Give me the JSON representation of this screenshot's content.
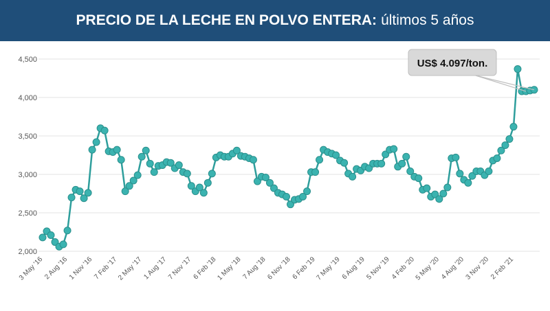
{
  "header": {
    "title_bold": "PRECIO DE LA LECHE EN POLVO ENTERA:",
    "title_rest": "últimos 5 años"
  },
  "colors": {
    "header_bg": "#1f4e79",
    "line": "#2e9e9c",
    "marker": "#3bb3b0",
    "grid": "#e3e3e3",
    "callout_bg": "#d9d9d9"
  },
  "callout": {
    "text": "US$ 4.097/ton."
  },
  "chart_data": {
    "type": "line",
    "title": "PRECIO DE LA LECHE EN POLVO ENTERA: últimos 5 años",
    "ylim": [
      2000,
      4500
    ],
    "yticks": [
      2000,
      2500,
      3000,
      3500,
      4000,
      4500
    ],
    "ytick_labels": [
      "2,000",
      "2,500",
      "3,000",
      "3,500",
      "4,000",
      "4,500"
    ],
    "grid": true,
    "xtick_labels": [
      "3 May '16",
      "2 Aug '16",
      "1 Nov '16",
      "7 Feb '17",
      "2 May '17",
      "1 Aug '17",
      "7 Nov '17",
      "6 Feb '18",
      "1 May '18",
      "7 Aug '18",
      "6 Nov '18",
      "6 Feb '19",
      "7 May '19",
      "6 Aug '19",
      "5 Nov '19",
      "4 Feb '20",
      "5 May '20",
      "4 Aug '20",
      "3 Nov '20",
      "2 Feb '21"
    ],
    "xtick_index": [
      0,
      6,
      12,
      18,
      24,
      30,
      36,
      42,
      48,
      54,
      60,
      66,
      72,
      78,
      84,
      90,
      96,
      102,
      108,
      114
    ],
    "series": [
      {
        "values": [
          2180,
          2260,
          2210,
          2120,
          2060,
          2090,
          2270,
          2700,
          2800,
          2780,
          2690,
          2760,
          3320,
          3420,
          3600,
          3570,
          3300,
          3290,
          3320,
          3190,
          2780,
          2850,
          2920,
          2990,
          3230,
          3310,
          3140,
          3030,
          3110,
          3120,
          3160,
          3150,
          3080,
          3120,
          3030,
          3010,
          2850,
          2780,
          2830,
          2760,
          2890,
          3010,
          3220,
          3250,
          3230,
          3230,
          3270,
          3310,
          3240,
          3230,
          3210,
          3190,
          2910,
          2970,
          2960,
          2890,
          2820,
          2760,
          2740,
          2710,
          2610,
          2670,
          2680,
          2710,
          2780,
          3030,
          3030,
          3190,
          3320,
          3290,
          3270,
          3250,
          3180,
          3150,
          3010,
          2970,
          3070,
          3050,
          3100,
          3080,
          3140,
          3140,
          3140,
          3260,
          3320,
          3330,
          3100,
          3140,
          3230,
          3040,
          2970,
          2950,
          2800,
          2820,
          2710,
          2740,
          2680,
          2750,
          2830,
          3210,
          3220,
          3010,
          2930,
          2890,
          2980,
          3040,
          3040,
          2990,
          3040,
          3180,
          3210,
          3310,
          3380,
          3460,
          3620,
          4370,
          4080,
          4080,
          4090,
          4100
        ]
      }
    ]
  }
}
